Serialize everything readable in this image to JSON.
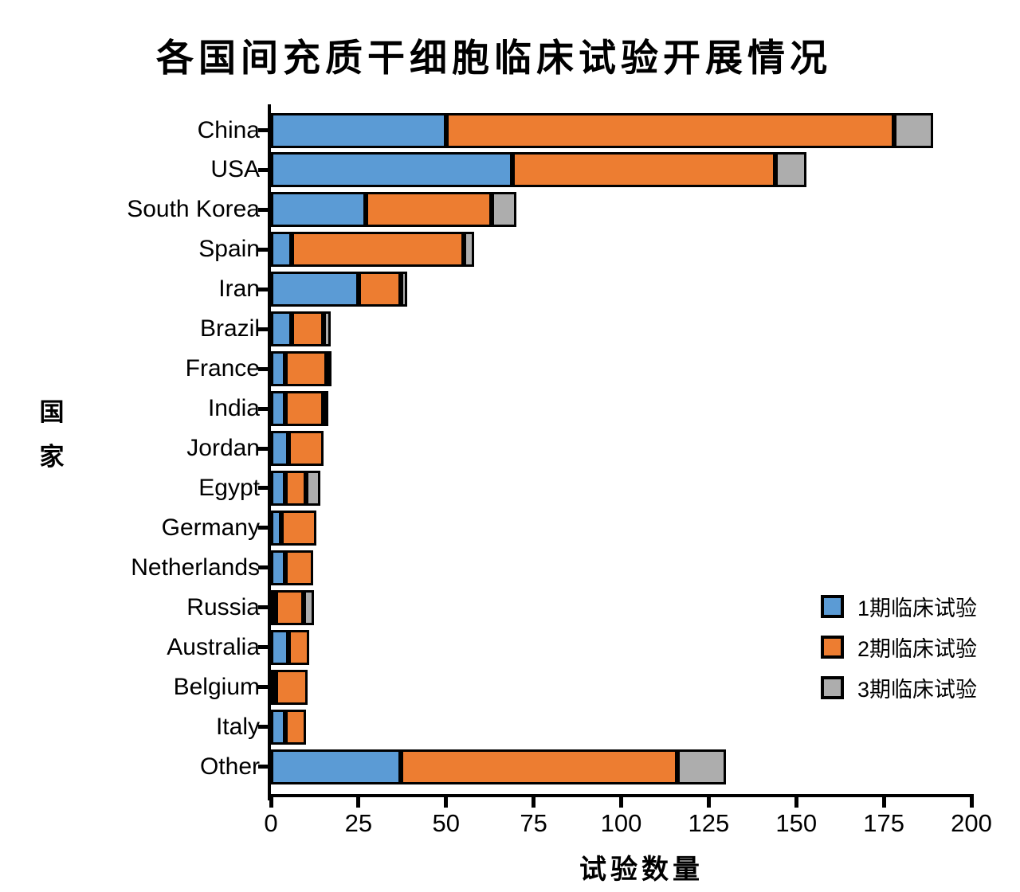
{
  "page": {
    "background": "#FFFFFF"
  },
  "chart_data": {
    "type": "bar",
    "orientation": "horizontal",
    "stacked": true,
    "title": "各国间充质干细胞临床试验开展情况",
    "xlabel": "试验数量",
    "ylabel": "国家",
    "xlim": [
      0,
      200
    ],
    "xticks": [
      0,
      25,
      50,
      75,
      100,
      125,
      150,
      175,
      200
    ],
    "grid": false,
    "legend_position": "inside lower right",
    "axis_color": "#000000",
    "bar_border_color": "#000000",
    "categories": [
      "China",
      "USA",
      "South Korea",
      "Spain",
      "Iran",
      "Brazil",
      "France",
      "India",
      "Jordan",
      "Egypt",
      "Germany",
      "Netherlands",
      "Russia",
      "Australia",
      "Belgium",
      "Italy",
      "Other"
    ],
    "series": [
      {
        "name": "1期临床试验",
        "color": "#5B9BD5",
        "values": [
          50,
          69,
          27,
          6,
          25,
          6,
          4,
          4,
          5,
          4,
          3,
          4,
          1,
          5,
          1,
          4,
          37
        ]
      },
      {
        "name": "2期临床试验",
        "color": "#ED7D31",
        "values": [
          128,
          75,
          36,
          49,
          12,
          9,
          12,
          11,
          10,
          6,
          10,
          8,
          8,
          6,
          9,
          6,
          79
        ]
      },
      {
        "name": "3期临床试验",
        "color": "#ADADAD",
        "values": [
          11,
          9,
          7,
          3,
          2,
          2,
          1,
          1,
          0,
          4,
          0,
          0,
          3,
          0,
          0,
          0,
          14
        ]
      }
    ]
  }
}
